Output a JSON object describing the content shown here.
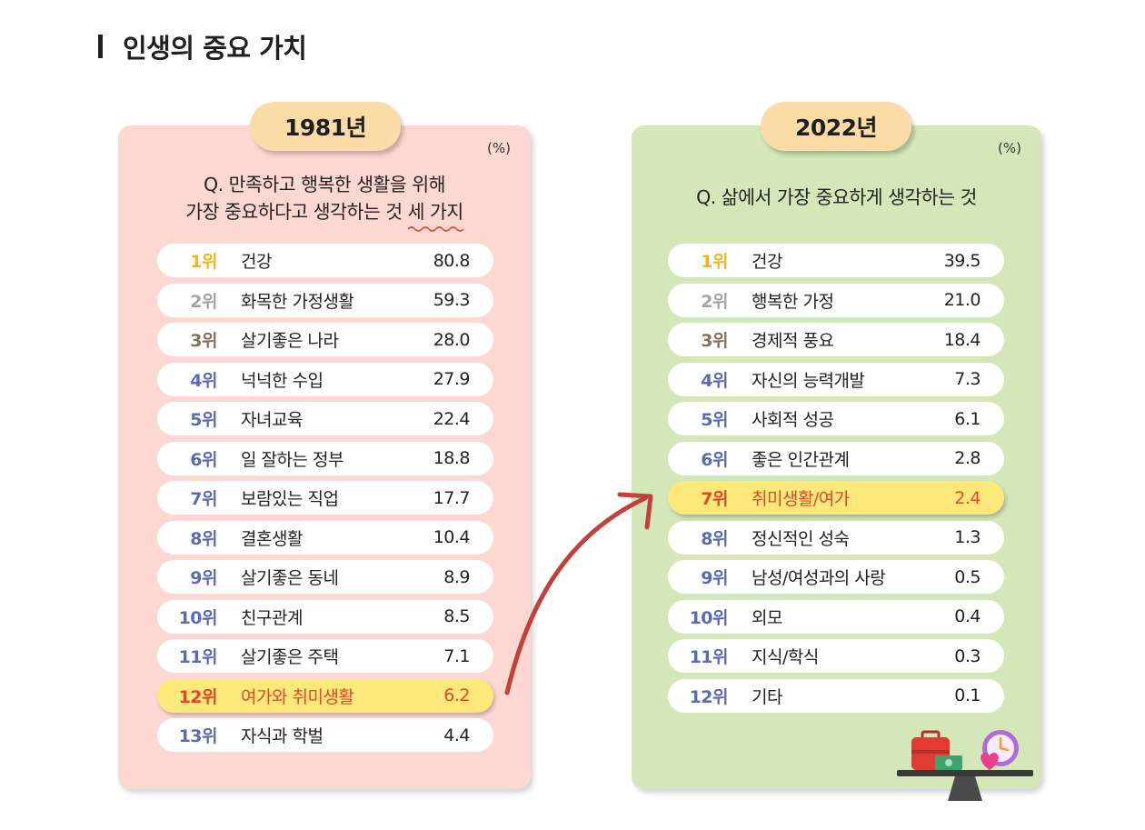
{
  "page": {
    "title": "인생의 중요 가치"
  },
  "left": {
    "year": "1981년",
    "unit": "(%)",
    "question_line1": "Q. 만족하고 행복한 생활을 위해",
    "question_line2_main": "가장 중요하다고 생각하는 것 ",
    "question_line2_emph": "세 가지",
    "ranks": [
      {
        "rank": "1위",
        "item": "건강",
        "value": "80.8"
      },
      {
        "rank": "2위",
        "item": "화목한 가정생활",
        "value": "59.3"
      },
      {
        "rank": "3위",
        "item": "살기좋은 나라",
        "value": "28.0"
      },
      {
        "rank": "4위",
        "item": "넉넉한 수입",
        "value": "27.9"
      },
      {
        "rank": "5위",
        "item": "자녀교육",
        "value": "22.4"
      },
      {
        "rank": "6위",
        "item": "일 잘하는 정부",
        "value": "18.8"
      },
      {
        "rank": "7위",
        "item": "보람있는 직업",
        "value": "17.7"
      },
      {
        "rank": "8위",
        "item": "결혼생활",
        "value": "10.4"
      },
      {
        "rank": "9위",
        "item": "살기좋은 동네",
        "value": "8.9"
      },
      {
        "rank": "10위",
        "item": "친구관계",
        "value": "8.5"
      },
      {
        "rank": "11위",
        "item": "살기좋은 주택",
        "value": "7.1"
      },
      {
        "rank": "12위",
        "item": "여가와 취미생활",
        "value": "6.2"
      },
      {
        "rank": "13위",
        "item": "자식과 학벌",
        "value": "4.4"
      }
    ]
  },
  "right": {
    "year": "2022년",
    "unit": "(%)",
    "question": "Q. 삶에서 가장 중요하게 생각하는 것",
    "ranks": [
      {
        "rank": "1위",
        "item": "건강",
        "value": "39.5"
      },
      {
        "rank": "2위",
        "item": "행복한 가정",
        "value": "21.0"
      },
      {
        "rank": "3위",
        "item": "경제적 풍요",
        "value": "18.4"
      },
      {
        "rank": "4위",
        "item": "자신의 능력개발",
        "value": "7.3"
      },
      {
        "rank": "5위",
        "item": "사회적 성공",
        "value": "6.1"
      },
      {
        "rank": "6위",
        "item": "좋은 인간관계",
        "value": "2.8"
      },
      {
        "rank": "7위",
        "item": "취미생활/여가",
        "value": "2.4"
      },
      {
        "rank": "8위",
        "item": "정신적인 성숙",
        "value": "1.3"
      },
      {
        "rank": "9위",
        "item": "남성/여성과의 사랑",
        "value": "0.5"
      },
      {
        "rank": "10위",
        "item": "외모",
        "value": "0.4"
      },
      {
        "rank": "11위",
        "item": "지식/학식",
        "value": "0.3"
      },
      {
        "rank": "12위",
        "item": "기타",
        "value": "0.1"
      }
    ]
  },
  "colors": {
    "left_panel": "#fdd8d2",
    "right_panel": "#d3e7b9",
    "badge": "#fcdca6",
    "highlight_row": "#fde97a",
    "highlight_text": "#e0482c",
    "rank_default": "#5b6ab3",
    "rank1": "#f2b51d",
    "rank2": "#a4a4a4",
    "rank3": "#86705c",
    "arrow": "#c4413a"
  },
  "icons": [
    "red-curved-arrow-icon",
    "balance-scale-icon",
    "briefcase-icon",
    "money-icon",
    "heart-icon",
    "clock-icon"
  ]
}
